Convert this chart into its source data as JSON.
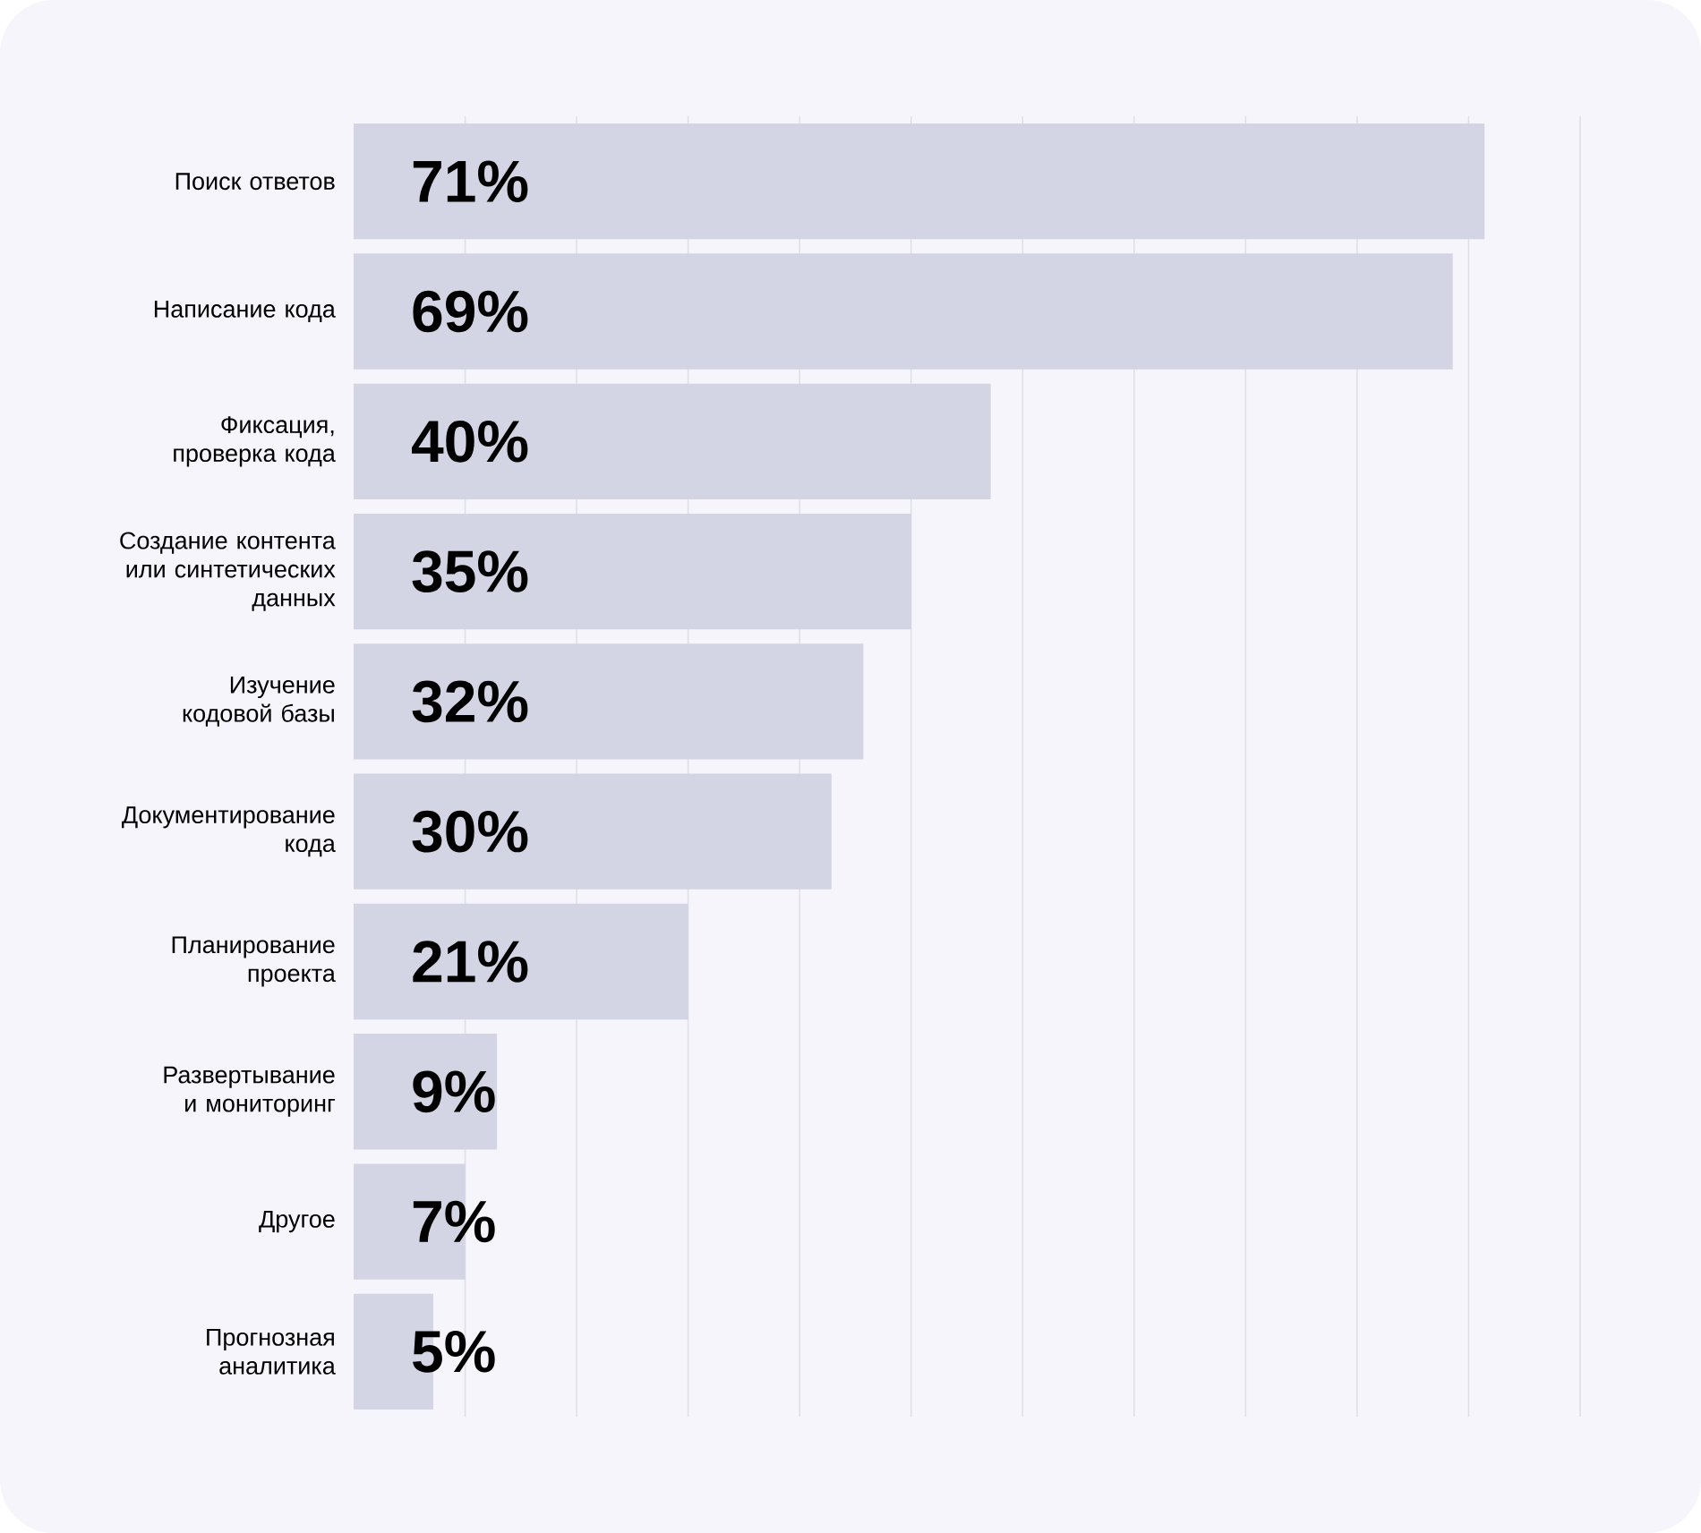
{
  "chart_data": {
    "type": "bar",
    "orientation": "horizontal",
    "categories": [
      "Поиск ответов",
      "Написание кода",
      "Фиксация, проверка кода",
      "Создание контента или синтетических данных",
      "Изучение кодовой базы",
      "Документирование кода",
      "Планирование проекта",
      "Развертывание и мониторинг",
      "Другое",
      "Прогнозная аналитика"
    ],
    "values": [
      71,
      69,
      40,
      35,
      32,
      30,
      21,
      9,
      7,
      5
    ],
    "value_labels": [
      "71%",
      "69%",
      "40%",
      "35%",
      "32%",
      "30%",
      "21%",
      "9%",
      "7%",
      "5%"
    ],
    "color": "#d3d4e4",
    "xlim": [
      0,
      77
    ],
    "xticks": [
      {
        "value": 7,
        "label": null
      },
      {
        "value": 14,
        "label": null
      },
      {
        "value": 21,
        "label": null
      },
      {
        "value": 28,
        "label": null
      },
      {
        "value": 35,
        "label": null
      },
      {
        "value": 42,
        "label": null
      },
      {
        "value": 49,
        "label": null
      },
      {
        "value": 56,
        "label": null
      },
      {
        "value": 63,
        "label": null
      },
      {
        "value": 70,
        "label": null
      },
      {
        "value": 77,
        "label": null
      }
    ],
    "grid": "x",
    "tick_labels": "y"
  }
}
